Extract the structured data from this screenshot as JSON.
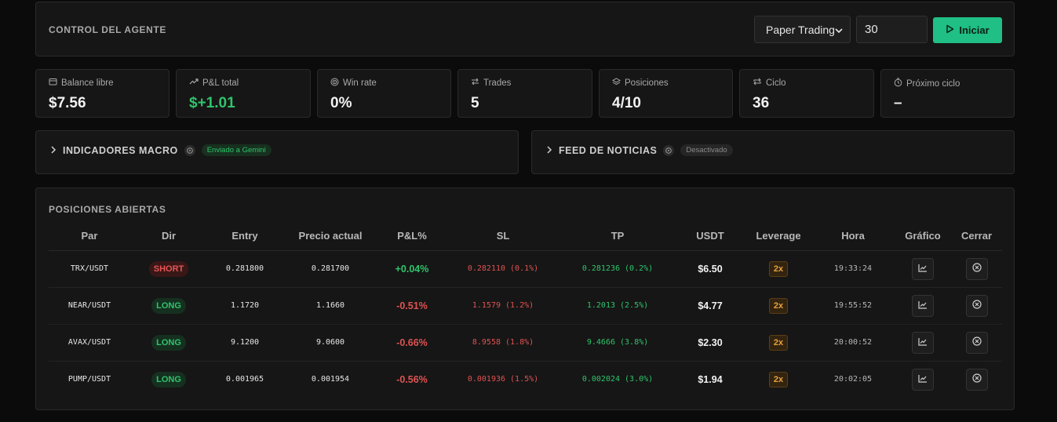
{
  "control": {
    "title": "CONTROL DEL AGENTE",
    "mode": "Paper Trading",
    "cycles_value": "30",
    "start_label": "Iniciar"
  },
  "stats": [
    {
      "label": "Balance libre",
      "value": "$7.56",
      "icon": "wallet-icon"
    },
    {
      "label": "P&L total",
      "value": "$+1.01",
      "icon": "trending-up-icon"
    },
    {
      "label": "Win rate",
      "value": "0%",
      "icon": "target-icon"
    },
    {
      "label": "Trades",
      "value": "5",
      "icon": "swap-icon"
    },
    {
      "label": "Posiciones",
      "value": "4/10",
      "icon": "layers-icon"
    },
    {
      "label": "Ciclo",
      "value": "36",
      "icon": "repeat-icon"
    },
    {
      "label": "Próximo ciclo",
      "value": "–",
      "icon": "timer-icon"
    }
  ],
  "macro": {
    "title": "INDICADORES MACRO",
    "badge": "Enviado a Gemini"
  },
  "news": {
    "title": "FEED DE NOTICIAS",
    "badge": "Desactivado"
  },
  "positions": {
    "title": "POSICIONES ABIERTAS",
    "columns": [
      "Par",
      "Dir",
      "Entry",
      "Precio actual",
      "P&L%",
      "SL",
      "TP",
      "USDT",
      "Leverage",
      "Hora",
      "Gráfico",
      "Cerrar"
    ],
    "rows": [
      {
        "pair": "TRX/USDT",
        "dir": "SHORT",
        "entry": "0.281800",
        "price": "0.281700",
        "pnl": "+0.04%",
        "sl": "0.282110 (0.1%)",
        "tp": "0.281236 (0.2%)",
        "usdt": "$6.50",
        "lev": "2x",
        "time": "19:33:24"
      },
      {
        "pair": "NEAR/USDT",
        "dir": "LONG",
        "entry": "1.1720",
        "price": "1.1660",
        "pnl": "-0.51%",
        "sl": "1.1579 (1.2%)",
        "tp": "1.2013 (2.5%)",
        "usdt": "$4.77",
        "lev": "2x",
        "time": "19:55:52"
      },
      {
        "pair": "AVAX/USDT",
        "dir": "LONG",
        "entry": "9.1200",
        "price": "9.0600",
        "pnl": "-0.66%",
        "sl": "8.9558 (1.8%)",
        "tp": "9.4666 (3.8%)",
        "usdt": "$2.30",
        "lev": "2x",
        "time": "20:00:52"
      },
      {
        "pair": "PUMP/USDT",
        "dir": "LONG",
        "entry": "0.001965",
        "price": "0.001954",
        "pnl": "-0.56%",
        "sl": "0.001936 (1.5%)",
        "tp": "0.002024 (3.0%)",
        "usdt": "$1.94",
        "lev": "2x",
        "time": "20:02:05"
      }
    ]
  },
  "colors": {
    "accent": "#1fbf85",
    "positive": "#2fc46b",
    "negative": "#e05252",
    "leverage": "#e6a23c"
  }
}
